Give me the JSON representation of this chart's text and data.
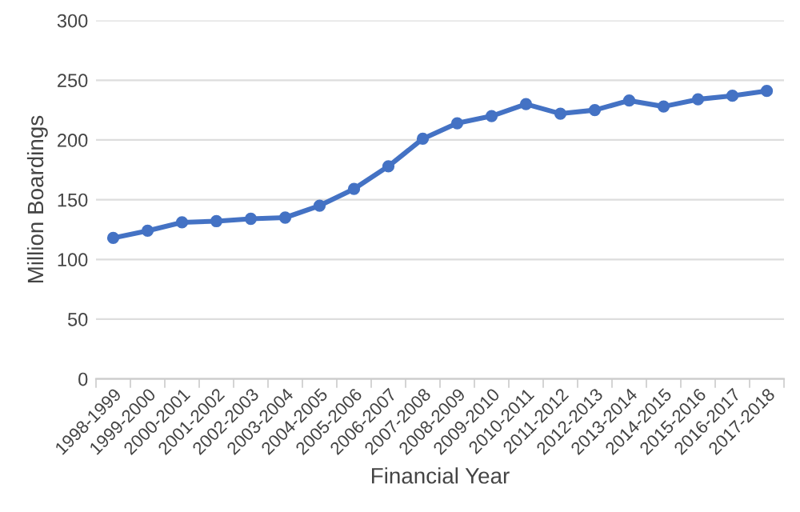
{
  "chart_data": {
    "type": "line",
    "xlabel": "Financial Year",
    "ylabel": "Million Boardings",
    "categories": [
      "1998-1999",
      "1999-2000",
      "2000-2001",
      "2001-2002",
      "2002-2003",
      "2003-2004",
      "2004-2005",
      "2005-2006",
      "2006-2007",
      "2007-2008",
      "2008-2009",
      "2009-2010",
      "2010-2011",
      "2011-2012",
      "2012-2013",
      "2013-2014",
      "2014-2015",
      "2015-2016",
      "2016-2017",
      "2017-2018"
    ],
    "series": [
      {
        "color": "#4472c4",
        "values": [
          118,
          124,
          131,
          132,
          134,
          135,
          145,
          159,
          178,
          201,
          214,
          220,
          230,
          222,
          225,
          233,
          228,
          234,
          237,
          241
        ]
      }
    ],
    "ylim": [
      0,
      300
    ],
    "yticks": [
      0,
      50,
      100,
      150,
      200,
      250,
      300
    ],
    "grid": "y",
    "marker": "circle",
    "line_style": "solid",
    "legend": false
  }
}
